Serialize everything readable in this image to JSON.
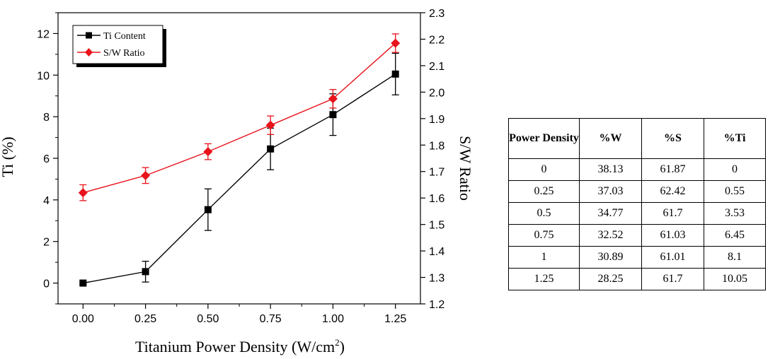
{
  "chart_data": {
    "type": "line",
    "xlabel_main": "Titanium Power Density (W/cm",
    "xlabel_sup": "2",
    "xlabel_end": ")",
    "ylabel_left": "Ti (%)",
    "ylabel_right": "S/W Ratio",
    "x": [
      0,
      0.25,
      0.5,
      0.75,
      1.0,
      1.25
    ],
    "x_tick_labels": [
      "0.00",
      "0.25",
      "0.50",
      "0.75",
      "1.00",
      "1.25"
    ],
    "xlim": [
      -0.1,
      1.35
    ],
    "ylim_left": [
      -1.0,
      13.0
    ],
    "y_left_ticks": [
      "0",
      "2",
      "4",
      "6",
      "8",
      "10",
      "12"
    ],
    "ylim_right": [
      1.2,
      2.3
    ],
    "y_right_ticks": [
      "1.2",
      "1.3",
      "1.4",
      "1.5",
      "1.6",
      "1.7",
      "1.8",
      "1.9",
      "2.0",
      "2.1",
      "2.2",
      "2.3"
    ],
    "grid": false,
    "legend_position": "top-left",
    "series": [
      {
        "name": "Ti Content",
        "axis": "left",
        "color": "#000000",
        "marker": "square",
        "values": [
          0,
          0.55,
          3.53,
          6.45,
          8.1,
          10.05
        ],
        "error": [
          0.05,
          0.5,
          1.0,
          1.0,
          1.0,
          1.0
        ]
      },
      {
        "name": "S/W Ratio",
        "axis": "right",
        "color": "#e8131b",
        "marker": "diamond",
        "values": [
          1.62,
          1.685,
          1.775,
          1.875,
          1.975,
          2.185
        ],
        "error": [
          0.03,
          0.03,
          0.03,
          0.035,
          0.035,
          0.035
        ]
      }
    ]
  },
  "table": {
    "headers": [
      "Power Density",
      "%W",
      "%S",
      "%Ti"
    ],
    "rows": [
      [
        "0",
        "38.13",
        "61.87",
        "0"
      ],
      [
        "0.25",
        "37.03",
        "62.42",
        "0.55"
      ],
      [
        "0.5",
        "34.77",
        "61.7",
        "3.53"
      ],
      [
        "0.75",
        "32.52",
        "61.03",
        "6.45"
      ],
      [
        "1",
        "30.89",
        "61.01",
        "8.1"
      ],
      [
        "1.25",
        "28.25",
        "61.7",
        "10.05"
      ]
    ]
  }
}
